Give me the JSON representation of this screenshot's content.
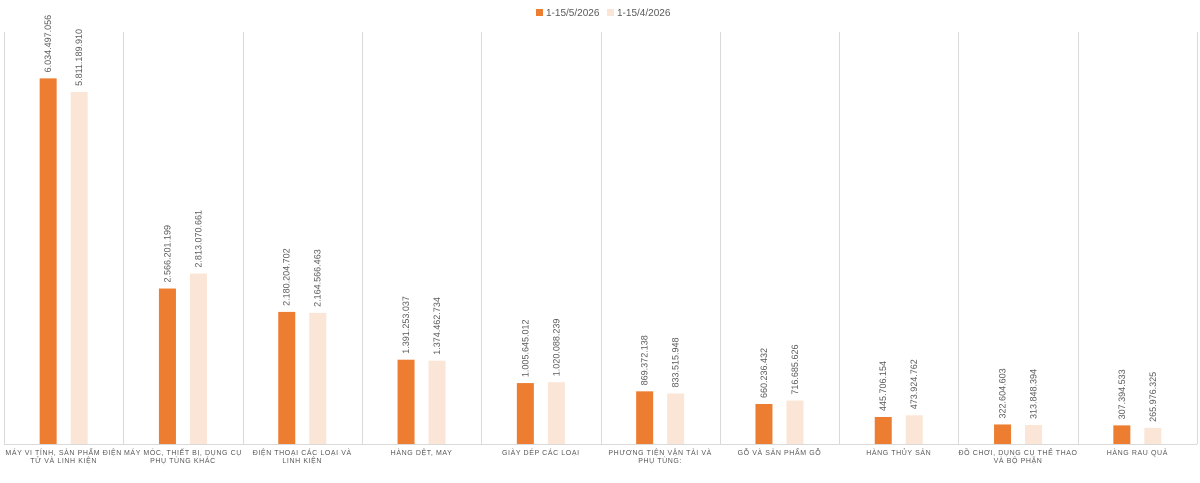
{
  "chart_data": {
    "type": "bar",
    "title": "",
    "xlabel": "",
    "ylabel": "",
    "ylim": [
      0,
      6800000000
    ],
    "grid": "vertical category separators",
    "legend_position": "top-center",
    "colors": {
      "series_1": "#ED7D31",
      "series_2": "#FBE5D6",
      "axis": "#D9D9D9",
      "text": "#595959"
    },
    "categories": [
      [
        "MÁY VI TÍNH, SẢN PHẨM ĐIỆN",
        "TỬ VÀ LINH KIỆN"
      ],
      [
        "MÁY MÓC, THIẾT BỊ, DỤNG CỤ",
        "PHỤ TÙNG KHÁC"
      ],
      [
        "ĐIỆN THOẠI CÁC LOẠI VÀ",
        "LINH KIỆN"
      ],
      [
        "HÀNG DỆT, MAY"
      ],
      [
        "GIÀY DÉP CÁC LOẠI"
      ],
      [
        "PHƯƠNG TIỆN VẬN TẢI VÀ",
        "PHỤ TÙNG:"
      ],
      [
        "GỖ VÀ SẢN PHẨM GỖ"
      ],
      [
        "HÀNG THỦY SẢN"
      ],
      [
        "ĐỒ CHƠI, DỤNG CỤ THỂ THAO",
        "VÀ BỘ PHẬN"
      ],
      [
        "HÀNG RAU QUẢ"
      ]
    ],
    "series": [
      {
        "name": "1-15/5/2026",
        "values": [
          6034497056,
          2566201199,
          2180204702,
          1391253037,
          1005645012,
          869372138,
          660236432,
          445706154,
          322604603,
          307394533
        ],
        "labels": [
          "6.034.497.056",
          "2.566.201.199",
          "2.180.204.702",
          "1.391.253.037",
          "1.005.645.012",
          "869.372.138",
          "660.236.432",
          "445.706.154",
          "322.604.603",
          "307.394.533"
        ]
      },
      {
        "name": "1-15/4/2026",
        "values": [
          5811189910,
          2813070661,
          2164566463,
          1374462734,
          1020088239,
          833515948,
          716685626,
          473924762,
          313848394,
          265976325
        ],
        "labels": [
          "5.811.189.910",
          "2.813.070.661",
          "2.164.566.463",
          "1.374.462.734",
          "1.020.088.239",
          "833.515.948",
          "716.685.626",
          "473.924.762",
          "313.848.394",
          "265.976.325"
        ]
      }
    ]
  }
}
